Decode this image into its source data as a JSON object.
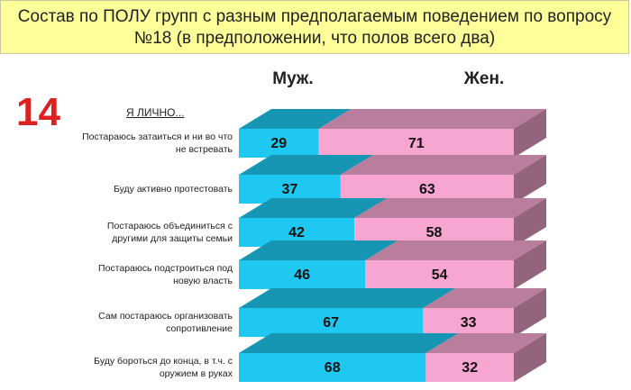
{
  "chart_data": {
    "type": "stacked-bar-3d",
    "title": "Состав по ПОЛУ групп с разным предполагаемым поведением по вопросу №18 (в предположении, что полов всего два)",
    "slide_number": "14",
    "subtitle": "Я ЛИЧНО...",
    "categories": [
      "Постараюсь затаиться и ни во что не встревать",
      "Буду активно протестовать",
      "Постараюсь объединиться с другими для защиты семьи",
      "Постараюсь подстроиться под новую власть",
      "Сам постараюсь организовать сопротивление",
      "Буду бороться до конца, в т.ч. с оружием в руках"
    ],
    "series": [
      {
        "name": "Муж.",
        "color": "#1ec8f0",
        "values": [
          29,
          37,
          42,
          46,
          67,
          68
        ]
      },
      {
        "name": "Жен.",
        "color": "#f7a6d2",
        "values": [
          71,
          63,
          58,
          54,
          33,
          32
        ]
      }
    ]
  }
}
